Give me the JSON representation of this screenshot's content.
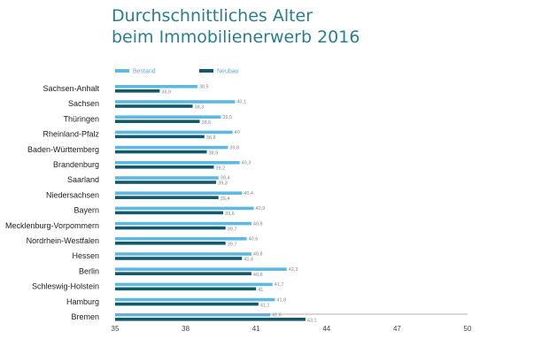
{
  "title": {
    "line1": "Durchschnittliches Alter",
    "line2": "beim Immobilienerwerb 2016"
  },
  "colors": {
    "title": "#2a7f8a",
    "Bestand": "#5db9e0",
    "Neubau": "#14586b",
    "axis": "#999999"
  },
  "chart_data": {
    "type": "bar",
    "orientation": "horizontal",
    "title": "Durchschnittliches Alter beim Immobilienerwerb 2016",
    "xlabel": "",
    "ylabel": "",
    "xlim": [
      35,
      50
    ],
    "xticks": [
      "35",
      "38",
      "41",
      "44",
      "47",
      "50"
    ],
    "grid": false,
    "legend_position": "top-left",
    "categories": [
      "Sachsen-Anhalt",
      "Sachsen",
      "Thüringen",
      "Rheinland-Pfalz",
      "Baden-Württemberg",
      "Brandenburg",
      "Saarland",
      "Niedersachsen",
      "Bayern",
      "Mecklenburg-Vorpommern",
      "Nordrhein-Westfalen",
      "Hessen",
      "Berlin",
      "Schleswig-Holstein",
      "Hamburg",
      "Bremen"
    ],
    "series": [
      {
        "name": "Bestand",
        "values": [
          38.5,
          40.1,
          39.5,
          40,
          39.8,
          40.3,
          39.4,
          40.4,
          40.9,
          40.8,
          40.6,
          40.8,
          42.3,
          41.7,
          41.8,
          41.6
        ],
        "labels": [
          "38,5",
          "40,1",
          "39,5",
          "40",
          "39,8",
          "40,3",
          "39,4",
          "40,4",
          "40,9",
          "40,8",
          "40,6",
          "40,8",
          "42,3",
          "41,7",
          "41,8",
          "41,6"
        ]
      },
      {
        "name": "Neubau",
        "values": [
          36.9,
          38.3,
          38.6,
          38.8,
          38.9,
          39.2,
          39.3,
          39.4,
          39.6,
          39.7,
          39.7,
          40.4,
          40.8,
          41,
          41.1,
          43.1
        ],
        "labels": [
          "36,9",
          "38,3",
          "38,6",
          "38,8",
          "38,9",
          "39,2",
          "39,3",
          "39,4",
          "39,6",
          "39,7",
          "39,7",
          "40,4",
          "40,8",
          "41",
          "41,1",
          "43,1"
        ]
      }
    ]
  }
}
